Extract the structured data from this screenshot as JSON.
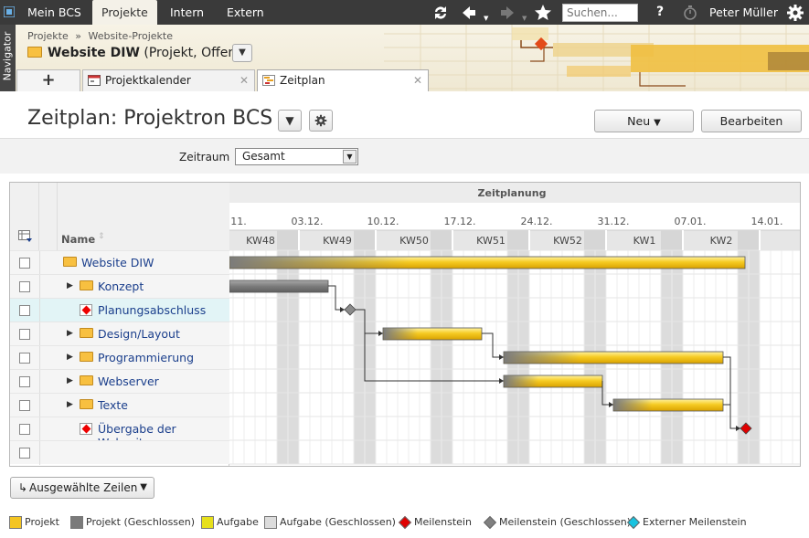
{
  "topnav": {
    "tabs": [
      "Mein BCS",
      "Projekte",
      "Intern",
      "Extern"
    ],
    "active_tab": "Projekte",
    "search_placeholder": "Suchen...",
    "help": "?",
    "user": "Peter Müller"
  },
  "header": {
    "navigator": "Navigator",
    "breadcrumb": [
      "Projekte",
      "»",
      "Website-Projekte"
    ],
    "project_title": "Website DIW",
    "project_meta": "(Projekt, Offen)",
    "add_tab_label": "+",
    "tabs": [
      {
        "label": "Projektkalender",
        "active": false
      },
      {
        "label": "Zeitplan",
        "active": true
      }
    ]
  },
  "page": {
    "title": "Zeitplan: Projektron BCS",
    "new_button": "Neu",
    "edit_button": "Bearbeiten"
  },
  "filter": {
    "label": "Zeitraum",
    "value": "Gesamt"
  },
  "gantt": {
    "header_title": "Zeitplanung",
    "name_column": "Name",
    "dates": [
      "11.",
      "03.12.",
      "10.12.",
      "17.12.",
      "24.12.",
      "31.12.",
      "07.01.",
      "14.01."
    ],
    "weeks": [
      "KW48",
      "KW49",
      "KW50",
      "KW51",
      "KW52",
      "KW1",
      "KW2"
    ],
    "rows": [
      {
        "name": "Website DIW",
        "type": "project",
        "expandable": false,
        "level": 0
      },
      {
        "name": "Konzept",
        "type": "project-closed",
        "expandable": true,
        "level": 1
      },
      {
        "name": "Planungsabschluss",
        "type": "milestone-closed",
        "expandable": false,
        "level": 1
      },
      {
        "name": "Design/Layout",
        "type": "project",
        "expandable": true,
        "level": 1
      },
      {
        "name": "Programmierung",
        "type": "project",
        "expandable": true,
        "level": 1
      },
      {
        "name": "Webserver",
        "type": "project",
        "expandable": true,
        "level": 1
      },
      {
        "name": "Texte",
        "type": "project",
        "expandable": true,
        "level": 1
      },
      {
        "name": "Übergabe der Webseite",
        "type": "milestone",
        "expandable": false,
        "level": 1
      }
    ],
    "bottom_button": "Ausgewählte Zeilen"
  },
  "legend": [
    {
      "label": "Projekt",
      "color": "#f4c522"
    },
    {
      "label": "Projekt (Geschlossen)",
      "color": "#7a7a7a"
    },
    {
      "label": "Aufgabe",
      "color": "#e7e01c"
    },
    {
      "label": "Aufgabe (Geschlossen)",
      "color": "#dcdcdc"
    },
    {
      "label": "Meilenstein",
      "color": "#e00000"
    },
    {
      "label": "Meilenstein (Geschlossen)",
      "color": "#808080"
    },
    {
      "label": "Externer Meilenstein",
      "color": "#17c3e0"
    }
  ]
}
